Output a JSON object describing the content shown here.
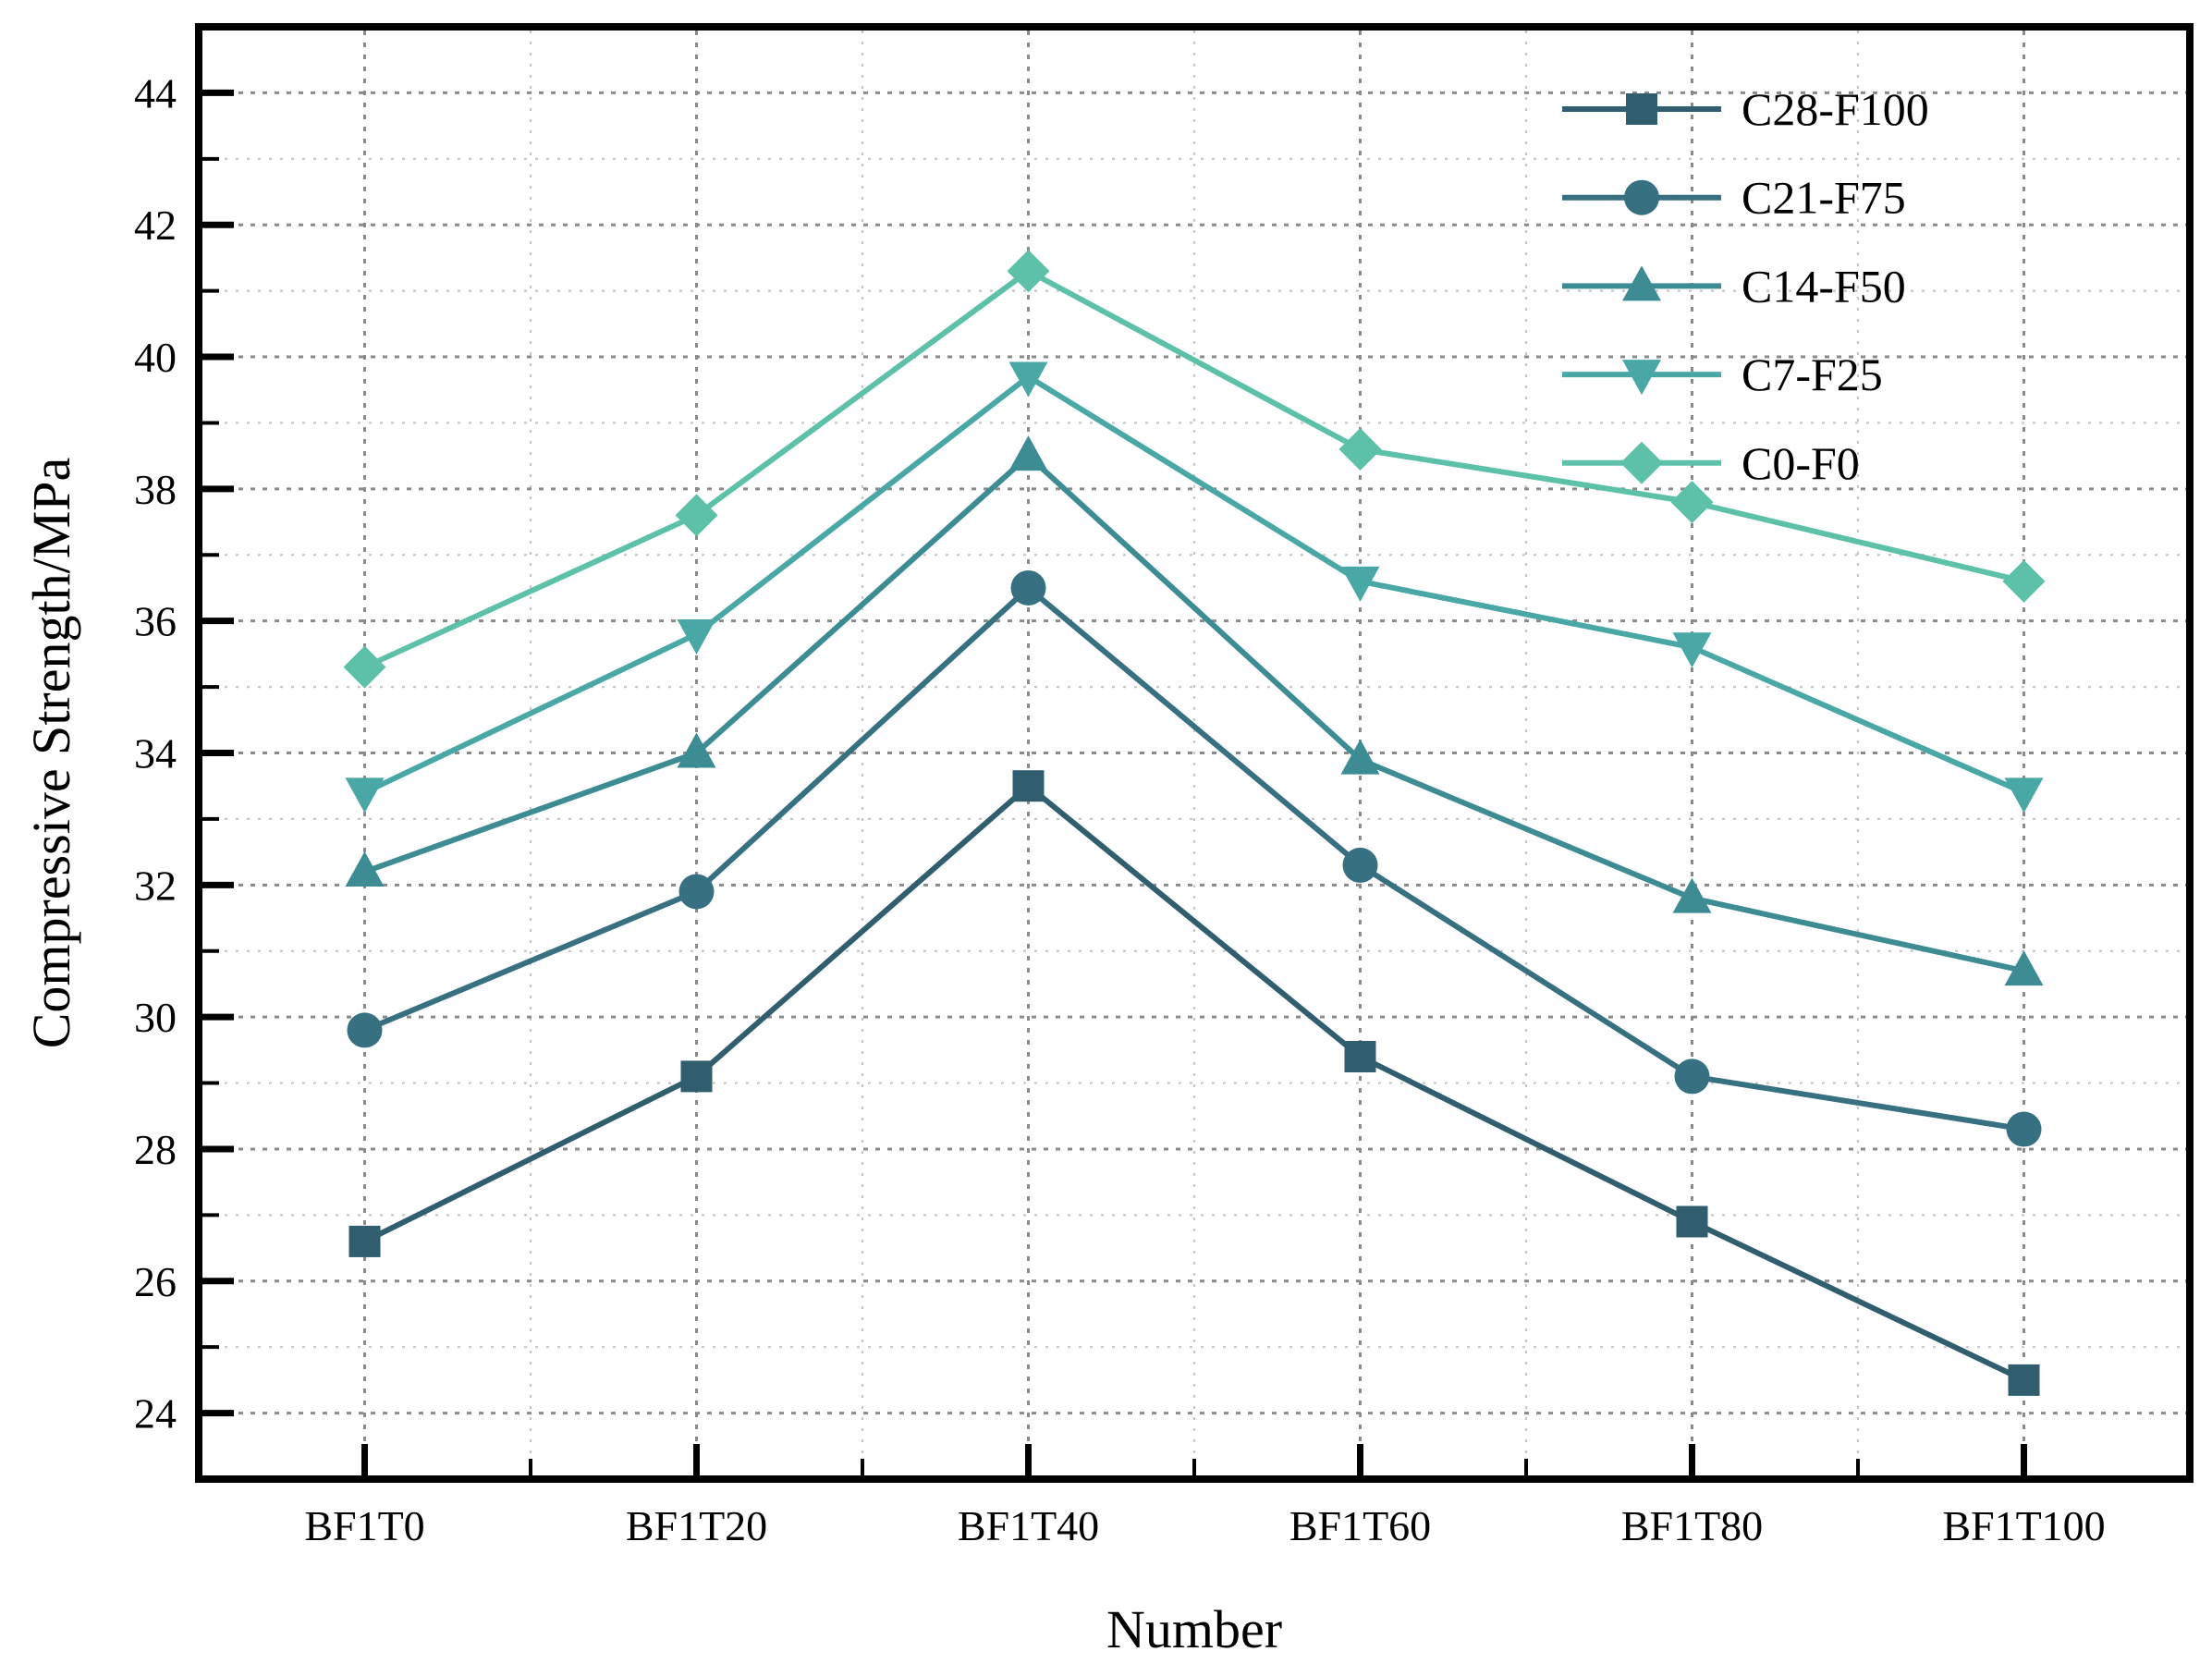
{
  "figure": {
    "background": "#ffffff",
    "axis_color": "#000000",
    "grid_major_color": "#8a8a8a",
    "grid_minor_color": "#c6c6c6"
  },
  "chart_data": {
    "type": "line",
    "title": "",
    "xlabel": "Number",
    "ylabel": "Compressive Strength/MPa",
    "categories": [
      "BF1T0",
      "BF1T20",
      "BF1T40",
      "BF1T60",
      "BF1T80",
      "BF1T100"
    ],
    "ylim": [
      23,
      45
    ],
    "yticks": [
      24,
      26,
      28,
      30,
      32,
      34,
      36,
      38,
      40,
      42,
      44
    ],
    "yticks_minor": [
      25,
      27,
      29,
      31,
      33,
      35,
      37,
      39,
      41,
      43
    ],
    "grid": "major and minor, dotted, both axes",
    "legend_position": "upper right, no frame",
    "series": [
      {
        "name": "C28-F100",
        "marker": "square",
        "color": "#305E6E",
        "values": [
          26.6,
          29.1,
          33.5,
          29.4,
          26.9,
          24.5
        ]
      },
      {
        "name": "C21-F75",
        "marker": "circle",
        "color": "#377080",
        "values": [
          29.8,
          31.9,
          36.5,
          32.3,
          29.1,
          28.3
        ]
      },
      {
        "name": "C14-F50",
        "marker": "triangle-up",
        "color": "#3E8C93",
        "values": [
          32.2,
          34.0,
          38.5,
          33.9,
          31.8,
          30.7
        ]
      },
      {
        "name": "C7-F25",
        "marker": "triangle-down",
        "color": "#49A8A6",
        "values": [
          33.4,
          35.8,
          39.7,
          36.6,
          35.6,
          33.4
        ]
      },
      {
        "name": "C0-F0",
        "marker": "diamond",
        "color": "#5DC1AA",
        "values": [
          35.3,
          37.6,
          41.3,
          38.6,
          37.8,
          36.6
        ]
      }
    ]
  }
}
